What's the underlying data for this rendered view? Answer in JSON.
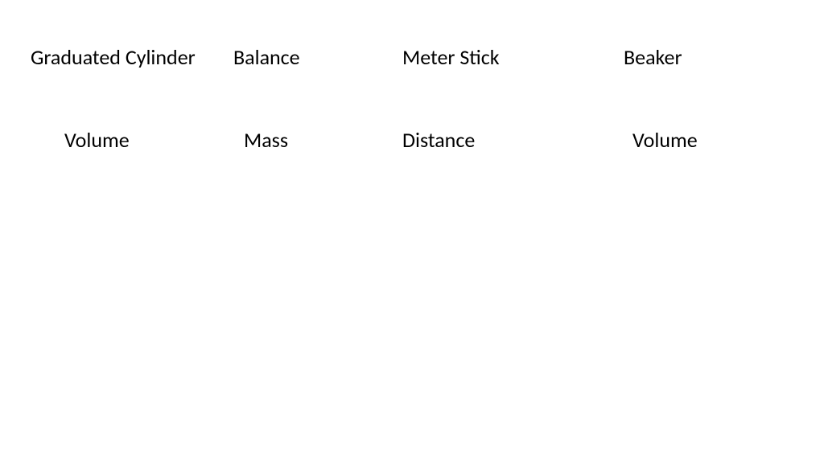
{
  "slide": {
    "background_color": "#ffffff",
    "text_color": "#000000",
    "font_family": "Calibri",
    "font_size_pt": 26,
    "rows": [
      {
        "items": [
          {
            "label": "Graduated Cylinder"
          },
          {
            "label": "Balance"
          },
          {
            "label": "Meter Stick"
          },
          {
            "label": "Beaker"
          }
        ]
      },
      {
        "items": [
          {
            "label": "Volume"
          },
          {
            "label": "Mass"
          },
          {
            "label": "Distance"
          },
          {
            "label": "Volume"
          }
        ]
      }
    ]
  }
}
